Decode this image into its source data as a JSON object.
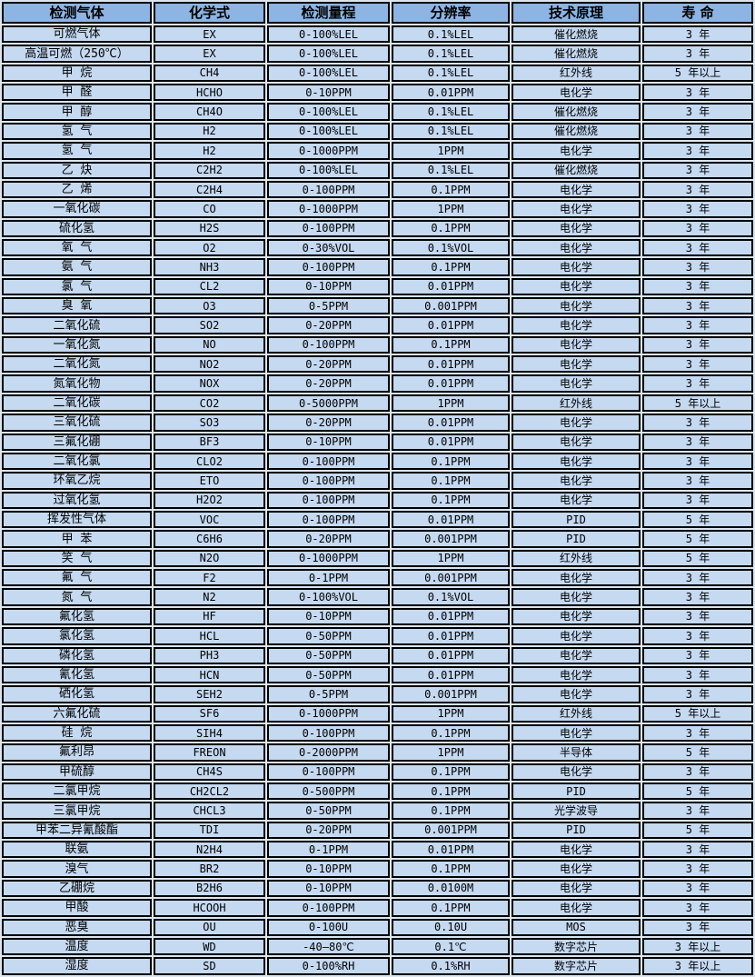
{
  "colors": {
    "header_bg": "#8db4e2",
    "row_bg": "#c5d9f1",
    "border": "#000000",
    "gap_bg": "#dce6f1",
    "text": "#000000"
  },
  "table": {
    "columns": [
      "检测气体",
      "化学式",
      "检测量程",
      "分辨率",
      "技术原理",
      "寿 命"
    ],
    "rows": [
      [
        "可燃气体",
        "EX",
        "0-100%LEL",
        "0.1%LEL",
        "催化燃烧",
        "3 年"
      ],
      [
        "高温可燃（250℃）",
        "EX",
        "0-100%LEL",
        "0.1%LEL",
        "催化燃烧",
        "3 年"
      ],
      [
        "甲 烷",
        "CH4",
        "0-100%LEL",
        "0.1%LEL",
        "红外线",
        "5 年以上"
      ],
      [
        "甲 醛",
        "HCHO",
        "0-10PPM",
        "0.01PPM",
        "电化学",
        "3 年"
      ],
      [
        "甲 醇",
        "CH4O",
        "0-100%LEL",
        "0.1%LEL",
        "催化燃烧",
        "3 年"
      ],
      [
        "氢 气",
        "H2",
        "0-100%LEL",
        "0.1%LEL",
        "催化燃烧",
        "3 年"
      ],
      [
        "氢 气",
        "H2",
        "0-1000PPM",
        "1PPM",
        "电化学",
        "3 年"
      ],
      [
        "乙 炔",
        "C2H2",
        "0-100%LEL",
        "0.1%LEL",
        "催化燃烧",
        "3 年"
      ],
      [
        "乙 烯",
        "C2H4",
        "0-100PPM",
        "0.1PPM",
        "电化学",
        "3 年"
      ],
      [
        "一氧化碳",
        "CO",
        "0-1000PPM",
        "1PPM",
        "电化学",
        "3 年"
      ],
      [
        "硫化氢",
        "H2S",
        "0-100PPM",
        "0.1PPM",
        "电化学",
        "3 年"
      ],
      [
        "氧 气",
        "O2",
        "0-30%VOL",
        "0.1%VOL",
        "电化学",
        "3 年"
      ],
      [
        "氨 气",
        "NH3",
        "0-100PPM",
        "0.1PPM",
        "电化学",
        "3 年"
      ],
      [
        "氯 气",
        "CL2",
        "0-10PPM",
        "0.01PPM",
        "电化学",
        "3 年"
      ],
      [
        "臭 氧",
        "O3",
        "0-5PPM",
        "0.001PPM",
        "电化学",
        "3 年"
      ],
      [
        "二氧化硫",
        "SO2",
        "0-20PPM",
        "0.01PPM",
        "电化学",
        "3 年"
      ],
      [
        "一氧化氮",
        "NO",
        "0-100PPM",
        "0.1PPM",
        "电化学",
        "3 年"
      ],
      [
        "二氧化氮",
        "NO2",
        "0-20PPM",
        "0.01PPM",
        "电化学",
        "3 年"
      ],
      [
        "氮氧化物",
        "NOX",
        "0-20PPM",
        "0.01PPM",
        "电化学",
        "3 年"
      ],
      [
        "二氧化碳",
        "CO2",
        "0-5000PPM",
        "1PPM",
        "红外线",
        "5 年以上"
      ],
      [
        "三氧化硫",
        "SO3",
        "0-20PPM",
        "0.01PPM",
        "电化学",
        "3 年"
      ],
      [
        "三氟化硼",
        "BF3",
        "0-10PPM",
        "0.01PPM",
        "电化学",
        "3 年"
      ],
      [
        "二氧化氯",
        "CLO2",
        "0-100PPM",
        "0.1PPM",
        "电化学",
        "3 年"
      ],
      [
        "环氧乙烷",
        "ETO",
        "0-100PPM",
        "0.1PPM",
        "电化学",
        "3 年"
      ],
      [
        "过氧化氢",
        "H2O2",
        "0-100PPM",
        "0.1PPM",
        "电化学",
        "3 年"
      ],
      [
        "挥发性气体",
        "VOC",
        "0-100PPM",
        "0.01PPM",
        "PID",
        "5 年"
      ],
      [
        "甲 苯",
        "C6H6",
        "0-20PPM",
        "0.001PPM",
        "PID",
        "5 年"
      ],
      [
        "笑 气",
        "N2O",
        "0-1000PPM",
        "1PPM",
        "红外线",
        "5 年"
      ],
      [
        "氟 气",
        "F2",
        "0-1PPM",
        "0.001PPM",
        "电化学",
        "3 年"
      ],
      [
        "氮 气",
        "N2",
        "0-100%VOL",
        "0.1%VOL",
        "电化学",
        "3 年"
      ],
      [
        "氟化氢",
        "HF",
        "0-10PPM",
        "0.01PPM",
        "电化学",
        "3 年"
      ],
      [
        "氯化氢",
        "HCL",
        "0-50PPM",
        "0.01PPM",
        "电化学",
        "3 年"
      ],
      [
        "磷化氢",
        "PH3",
        "0-50PPM",
        "0.01PPM",
        "电化学",
        "3 年"
      ],
      [
        "氰化氢",
        "HCN",
        "0-50PPM",
        "0.01PPM",
        "电化学",
        "3 年"
      ],
      [
        "硒化氢",
        "SEH2",
        "0-5PPM",
        "0.001PPM",
        "电化学",
        "3 年"
      ],
      [
        "六氟化硫",
        "SF6",
        "0-1000PPM",
        "1PPM",
        "红外线",
        "5 年以上"
      ],
      [
        "硅 烷",
        "SIH4",
        "0-100PPM",
        "0.1PPM",
        "电化学",
        "3 年"
      ],
      [
        "氟利昂",
        "FREON",
        "0-2000PPM",
        "1PPM",
        "半导体",
        "5 年"
      ],
      [
        "甲硫醇",
        "CH4S",
        "0-100PPM",
        "0.1PPM",
        "电化学",
        "3 年"
      ],
      [
        "二氯甲烷",
        "CH2CL2",
        "0-500PPM",
        "0.1PPM",
        "PID",
        "5 年"
      ],
      [
        "三氯甲烷",
        "CHCL3",
        "0-50PPM",
        "0.1PPM",
        "光学波导",
        "3 年"
      ],
      [
        "甲苯二异氰酸酯",
        "TDI",
        "0-20PPM",
        "0.001PPM",
        "PID",
        "5 年"
      ],
      [
        "联氨",
        "N2H4",
        "0-1PPM",
        "0.01PPM",
        "电化学",
        "3 年"
      ],
      [
        "溴气",
        "BR2",
        "0-10PPM",
        "0.1PPM",
        "电化学",
        "3 年"
      ],
      [
        "乙硼烷",
        "B2H6",
        "0-10PPM",
        "0.0100M",
        "电化学",
        "3 年"
      ],
      [
        "甲酸",
        "HCOOH",
        "0-100PPM",
        "0.1PPM",
        "电化学",
        "3 年"
      ],
      [
        "恶臭",
        "OU",
        "0-100U",
        "0.10U",
        "MOS",
        "3 年"
      ],
      [
        "温度",
        "WD",
        "-40—80℃",
        "0.1℃",
        "数字芯片",
        "3 年以上"
      ],
      [
        "湿度",
        "SD",
        "0-100%RH",
        "0.1%RH",
        "数字芯片",
        "3 年以上"
      ]
    ]
  }
}
